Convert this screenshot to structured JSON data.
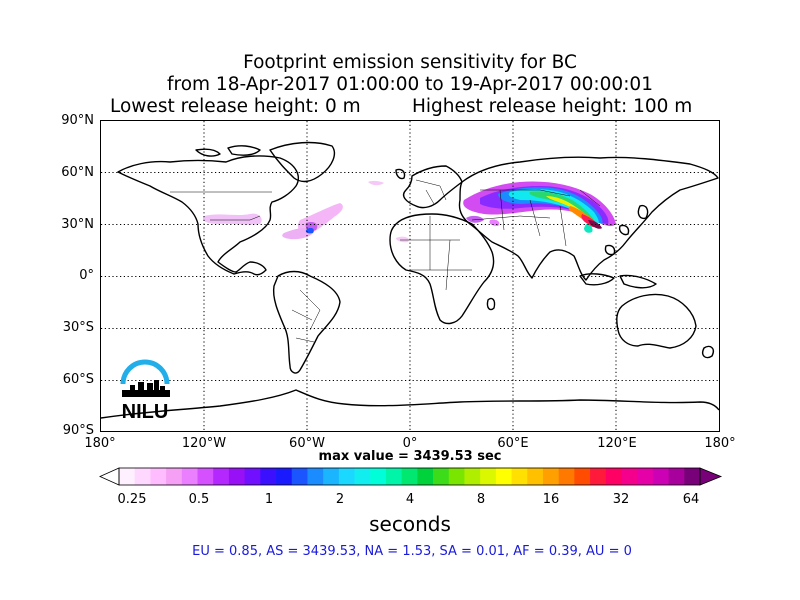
{
  "title": {
    "line1": "Footprint emission sensitivity for BC",
    "line2": "from 18-Apr-2017 01:00:00 to 19-Apr-2017 00:00:01",
    "lowest": "Lowest release height: 0 m",
    "highest": "Highest release height: 100 m"
  },
  "map": {
    "lat_labels": [
      "90°N",
      "60°N",
      "30°N",
      "0°",
      "30°S",
      "60°S",
      "90°S"
    ],
    "lon_labels": [
      "180°",
      "120°W",
      "60°W",
      "0°",
      "60°E",
      "120°E",
      "180°"
    ],
    "logo_text": "NILU",
    "logo_color": "#22aee8",
    "grid": "dotted"
  },
  "max_value": "max value = 3439.53 sec",
  "colorbar": {
    "ticks": [
      "0.25",
      "0.5",
      "1",
      "2",
      "4",
      "8",
      "16",
      "32",
      "64"
    ],
    "units": "seconds",
    "colors": [
      "#fff0ff",
      "#ffd8ff",
      "#ffbcff",
      "#f5a0f5",
      "#ea80ff",
      "#d550ff",
      "#b428ff",
      "#9810f5",
      "#7010ff",
      "#3a10ff",
      "#1a1aff",
      "#1a55ff",
      "#1a8cff",
      "#1ab4ff",
      "#1ad8ff",
      "#12eef0",
      "#00ffd8",
      "#00f5a8",
      "#00e870",
      "#00d23c",
      "#3cdc1a",
      "#7ae600",
      "#b0ee00",
      "#dcf800",
      "#ffff00",
      "#ffe000",
      "#ffc000",
      "#ffa000",
      "#ff7800",
      "#ff4c00",
      "#ff1a3c",
      "#ff0064",
      "#f5008c",
      "#e600a8",
      "#cc00b4",
      "#a8009c",
      "#780078"
    ]
  },
  "stats": "EU = 0.85,  AS = 3439.53,  NA = 1.53,  SA = 0.01,  AF = 0.39,  AU = 0"
}
